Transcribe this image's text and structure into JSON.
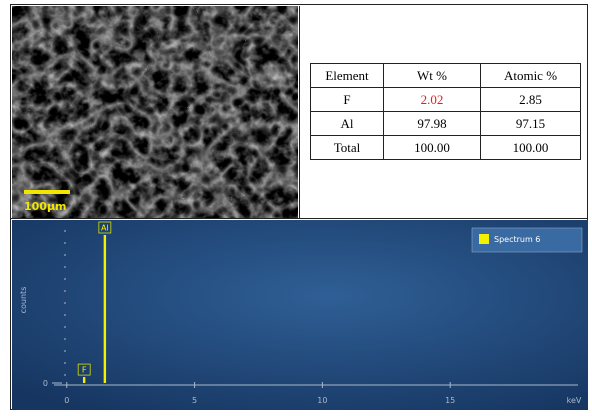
{
  "image": {
    "scale_bar": "100µm"
  },
  "table": {
    "header": [
      "Element",
      "Wt %",
      "Atomic %"
    ],
    "rows": [
      [
        "F",
        "2.02",
        "2.85"
      ],
      [
        "Al",
        "97.98",
        "97.15"
      ],
      [
        "Total",
        "100.00",
        "100.00"
      ]
    ]
  },
  "spectrum": {
    "legend": "Spectrum 6",
    "x_label": "keV",
    "y_label": "counts",
    "xlim": [
      -0.5,
      20
    ],
    "xticks": [
      0,
      5,
      10,
      15
    ],
    "ylim": [
      0,
      100
    ],
    "yticks": [
      0
    ],
    "peaks": [
      {
        "label": "F",
        "energy": 0.68,
        "counts": 4
      },
      {
        "label": "Al",
        "energy": 1.49,
        "counts": 100
      }
    ]
  }
}
